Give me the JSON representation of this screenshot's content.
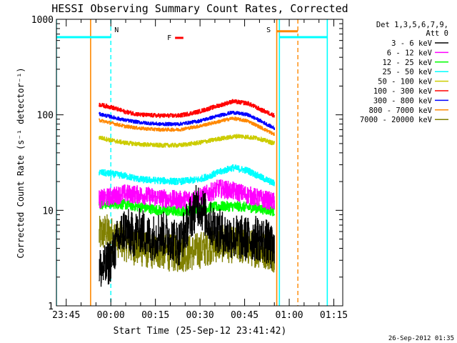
{
  "chart_data": {
    "type": "line",
    "title": "HESSI Observing Summary Count Rates, Corrected",
    "xlabel": "Start Time (25-Sep-12 23:41:42)",
    "ylabel": "Corrected Count Rate (s⁻¹ detector⁻¹)",
    "yscale": "log",
    "ylim": [
      1,
      1000
    ],
    "xlim": [
      "23:41:42",
      "01:18:00"
    ],
    "x_tick_labels": [
      "23:45",
      "00:00",
      "00:15",
      "00:30",
      "00:45",
      "01:00",
      "01:15"
    ],
    "x_tick_values_min": [
      3.3,
      18.3,
      33.3,
      48.3,
      63.3,
      78.3,
      93.3
    ],
    "y_tick_labels": [
      "1",
      "10",
      "100",
      "1000"
    ],
    "legend_title": [
      "Det 1,3,5,6,7,9,",
      "Att 0"
    ],
    "legend_position": "right",
    "footer": "26-Sep-2012 01:35",
    "series": [
      {
        "name": "3 - 6 keV",
        "color": "#000000",
        "x": [
          14.3,
          16.5,
          18.5,
          20.6,
          22.9,
          25.5,
          28.4,
          31.5,
          34.7,
          38.0,
          41.3,
          44.6,
          47.9,
          51.3,
          54.6,
          57.9,
          61.2,
          64.4,
          67.6,
          70.4,
          73.4
        ],
        "values": [
          2.4,
          2.5,
          3.2,
          4.8,
          6.5,
          5.5,
          6.2,
          5.0,
          5.8,
          5.3,
          4.5,
          8.0,
          12.0,
          7.5,
          6.0,
          5.4,
          5.2,
          5.0,
          5.1,
          4.8,
          3.6
        ]
      },
      {
        "name": "6 - 12 keV",
        "color": "#ff00ff",
        "x": [
          14.3,
          18.5,
          22.9,
          28.4,
          34.7,
          41.3,
          47.9,
          54.6,
          61.2,
          67.6,
          73.4
        ],
        "values": [
          13.0,
          14.0,
          15.0,
          14.5,
          13.5,
          12.8,
          13.5,
          17.0,
          15.5,
          13.5,
          12.2
        ]
      },
      {
        "name": "12 - 25 keV",
        "color": "#00ff00",
        "x": [
          14.3,
          18.5,
          22.9,
          28.4,
          34.7,
          41.3,
          47.9,
          54.6,
          61.2,
          67.6,
          73.4
        ],
        "values": [
          11.5,
          11.8,
          11.5,
          10.8,
          10.0,
          9.8,
          10.2,
          11.0,
          11.0,
          10.5,
          9.8
        ]
      },
      {
        "name": "25 - 50 keV",
        "color": "#00ffff",
        "x": [
          14.3,
          18.5,
          22.9,
          28.4,
          34.7,
          41.3,
          47.9,
          54.6,
          59.2,
          64.4,
          69.0,
          73.4
        ],
        "values": [
          25.0,
          24.0,
          23.0,
          21.0,
          20.5,
          20.0,
          21.0,
          25.0,
          28.0,
          26.0,
          22.0,
          19.0
        ]
      },
      {
        "name": "50 - 100 keV",
        "color": "#cccc00",
        "x": [
          14.3,
          18.5,
          22.9,
          28.4,
          34.7,
          41.3,
          47.9,
          54.6,
          61.2,
          67.6,
          73.4
        ],
        "values": [
          58.0,
          54.0,
          51.0,
          49.0,
          48.0,
          48.0,
          51.0,
          56.0,
          60.0,
          57.0,
          50.0
        ]
      },
      {
        "name": "100 - 300 keV",
        "color": "#ff0000",
        "x": [
          14.3,
          18.5,
          22.9,
          28.4,
          34.7,
          41.3,
          47.9,
          54.6,
          59.2,
          64.4,
          69.0,
          73.4
        ],
        "values": [
          128.0,
          120.0,
          108.0,
          100.0,
          98.0,
          98.0,
          108.0,
          125.0,
          138.0,
          132.0,
          112.0,
          98.0
        ]
      },
      {
        "name": "300 - 800 keV",
        "color": "#0000ff",
        "x": [
          14.3,
          18.5,
          22.9,
          28.4,
          34.7,
          41.3,
          47.9,
          54.6,
          59.2,
          64.4,
          69.0,
          73.4
        ],
        "values": [
          102.0,
          95.0,
          88.0,
          83.0,
          80.0,
          80.0,
          86.0,
          98.0,
          106.0,
          100.0,
          85.0,
          72.0
        ]
      },
      {
        "name": "800 - 7000 keV",
        "color": "#ff8800",
        "x": [
          14.3,
          18.5,
          22.9,
          28.4,
          34.7,
          41.3,
          47.9,
          54.6,
          59.2,
          64.4,
          69.0,
          73.4
        ],
        "values": [
          88.0,
          82.0,
          76.0,
          72.0,
          70.0,
          70.0,
          76.0,
          85.0,
          92.0,
          86.0,
          73.0,
          62.0
        ]
      },
      {
        "name": "7000 - 20000 keV",
        "color": "#808000",
        "x": [
          14.3,
          16.5,
          18.5,
          20.6,
          22.9,
          25.5,
          28.4,
          31.5,
          34.7,
          38.0,
          41.3,
          44.6,
          47.9,
          51.3,
          54.6,
          57.9,
          61.2,
          64.4,
          67.6,
          70.4,
          73.4
        ],
        "values": [
          5.5,
          6.0,
          5.5,
          5.0,
          4.6,
          4.2,
          4.0,
          3.8,
          3.8,
          3.6,
          3.5,
          3.6,
          3.8,
          4.2,
          4.5,
          4.4,
          4.3,
          4.1,
          3.9,
          3.8,
          3.5
        ]
      }
    ],
    "markers": [
      {
        "label": "N",
        "color": "#00ffff",
        "line_x": 18.3,
        "dashed": true
      },
      {
        "label": "S",
        "color": "#ff8800",
        "line_x": 81.2,
        "dashed": true
      },
      {
        "label": "F",
        "color": "#ff0000",
        "bar_x": [
          39.9,
          42.7
        ],
        "bar_y": 650
      }
    ],
    "night_bars": [
      {
        "color": "#00ffff",
        "x": [
          0.0,
          18.3
        ],
        "y": 650
      },
      {
        "color": "#00ffff",
        "x": [
          75.0,
          91.1
        ],
        "y": 650
      },
      {
        "color": "#ff8800",
        "x": [
          74.1,
          81.2
        ],
        "y": 750
      }
    ],
    "solid_lines": [
      {
        "color": "#ff8800",
        "x": 11.5
      },
      {
        "color": "#ff8800",
        "x": 74.1
      },
      {
        "color": "#00ffff",
        "x": 0.0
      },
      {
        "color": "#00ffff",
        "x": 75.0
      },
      {
        "color": "#00ffff",
        "x": 91.1
      }
    ]
  }
}
